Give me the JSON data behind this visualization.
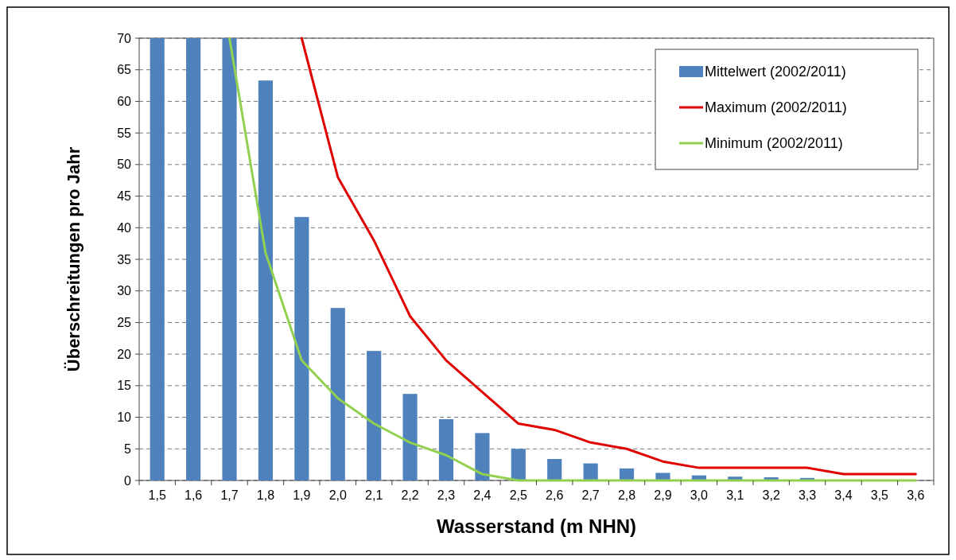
{
  "chart_data": {
    "type": "bar",
    "xlabel": "Wasserstand (m NHN)",
    "ylabel": "Überschreitungen pro Jahr",
    "categories": [
      "1,5",
      "1,6",
      "1,7",
      "1,8",
      "1,9",
      "2,0",
      "2,1",
      "2,2",
      "2,3",
      "2,4",
      "2,5",
      "2,6",
      "2,7",
      "2,8",
      "2,9",
      "3,0",
      "3,1",
      "3,2",
      "3,3",
      "3,4",
      "3,5",
      "3,6"
    ],
    "series": [
      {
        "name": "Mittelwert (2002/2011)",
        "color": "#4f81bd",
        "values": [
          70,
          70,
          70,
          63.3,
          41.7,
          27.3,
          20.5,
          13.7,
          9.7,
          7.5,
          5.0,
          3.4,
          2.7,
          1.9,
          1.2,
          0.8,
          0.6,
          0.5,
          0.4,
          null,
          null,
          null
        ]
      },
      {
        "name": "Maximum (2002/2011)",
        "type": "line",
        "color": "#e00000",
        "values": [
          null,
          null,
          null,
          null,
          70,
          48,
          38,
          26,
          19,
          14,
          9,
          8,
          6,
          5,
          3,
          2,
          2,
          2,
          2,
          1,
          1,
          1
        ]
      },
      {
        "name": "Minimum (2002/2011)",
        "type": "line",
        "color": "#92d050",
        "values": [
          null,
          null,
          70,
          36,
          19,
          13,
          9,
          6,
          4,
          1,
          0,
          0,
          0,
          0,
          0,
          0,
          0,
          0,
          0,
          0,
          0,
          0
        ]
      }
    ],
    "ylim": [
      0,
      70
    ],
    "yticks": [
      0,
      5,
      10,
      15,
      20,
      25,
      30,
      35,
      40,
      45,
      50,
      55,
      60,
      65,
      70
    ],
    "grid": "y",
    "legend": "top right"
  }
}
